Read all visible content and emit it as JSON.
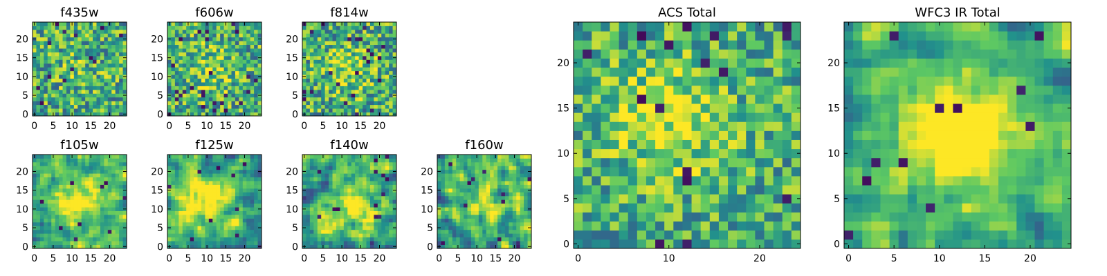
{
  "figure": {
    "colormap": [
      "#440154",
      "#3b528b",
      "#21918c",
      "#5ec962",
      "#fde725"
    ],
    "grid_size": 25
  },
  "chart_data": [
    {
      "type": "heatmap",
      "title": "f435w",
      "xticks": [
        "0",
        "5",
        "10",
        "15",
        "20"
      ],
      "yticks": [
        "0",
        "5",
        "10",
        "15",
        "20"
      ],
      "xlim": [
        -0.5,
        24.5
      ],
      "ylim": [
        -0.5,
        24.5
      ],
      "seed": 11,
      "peak": [
        12,
        12
      ],
      "peak_strength": 0.08,
      "smooth": 0,
      "noise": 0.42,
      "dark_fraction": 0.03
    },
    {
      "type": "heatmap",
      "title": "f606w",
      "xticks": [
        "0",
        "5",
        "10",
        "15",
        "20"
      ],
      "yticks": [
        "0",
        "5",
        "10",
        "15",
        "20"
      ],
      "xlim": [
        -0.5,
        24.5
      ],
      "ylim": [
        -0.5,
        24.5
      ],
      "seed": 23,
      "peak": [
        11,
        12
      ],
      "peak_strength": 0.2,
      "smooth": 0,
      "noise": 0.42,
      "dark_fraction": 0.035
    },
    {
      "type": "heatmap",
      "title": "f814w",
      "xticks": [
        "0",
        "5",
        "10",
        "15",
        "20"
      ],
      "yticks": [
        "0",
        "5",
        "10",
        "15",
        "20"
      ],
      "xlim": [
        -0.5,
        24.5
      ],
      "ylim": [
        -0.5,
        24.5
      ],
      "seed": 37,
      "peak": [
        12,
        12
      ],
      "peak_strength": 0.22,
      "smooth": 0,
      "noise": 0.42,
      "dark_fraction": 0.04
    },
    {
      "type": "heatmap",
      "title": "f105w",
      "xticks": [
        "0",
        "5",
        "10",
        "15",
        "20"
      ],
      "yticks": [
        "0",
        "5",
        "10",
        "15",
        "20"
      ],
      "xlim": [
        -0.5,
        24.5
      ],
      "ylim": [
        -0.5,
        24.5
      ],
      "seed": 41,
      "peak": [
        12,
        12
      ],
      "peak_strength": 0.45,
      "smooth": 1,
      "noise": 0.32,
      "dark_fraction": 0.01
    },
    {
      "type": "heatmap",
      "title": "f125w",
      "xticks": [
        "0",
        "5",
        "10",
        "15",
        "20"
      ],
      "yticks": [
        "0",
        "5",
        "10",
        "15",
        "20"
      ],
      "xlim": [
        -0.5,
        24.5
      ],
      "ylim": [
        -0.5,
        24.5
      ],
      "seed": 53,
      "peak": [
        10,
        13
      ],
      "peak_strength": 0.45,
      "smooth": 1,
      "noise": 0.32,
      "dark_fraction": 0.015
    },
    {
      "type": "heatmap",
      "title": "f140w",
      "xticks": [
        "0",
        "5",
        "10",
        "15",
        "20"
      ],
      "yticks": [
        "0",
        "5",
        "10",
        "15",
        "20"
      ],
      "xlim": [
        -0.5,
        24.5
      ],
      "ylim": [
        -0.5,
        24.5
      ],
      "seed": 67,
      "peak": [
        13,
        11
      ],
      "peak_strength": 0.35,
      "smooth": 1,
      "noise": 0.38,
      "dark_fraction": 0.02
    },
    {
      "type": "heatmap",
      "title": "f160w",
      "xticks": [
        "0",
        "5",
        "10",
        "15",
        "20"
      ],
      "yticks": [
        "0",
        "5",
        "10",
        "15",
        "20"
      ],
      "xlim": [
        -0.5,
        24.5
      ],
      "ylim": [
        -0.5,
        24.5
      ],
      "seed": 79,
      "peak": [
        12,
        12
      ],
      "peak_strength": 0.3,
      "smooth": 1,
      "noise": 0.4,
      "dark_fraction": 0.025
    },
    {
      "type": "heatmap",
      "title": "ACS Total",
      "xticks": [
        "0",
        "10",
        "20"
      ],
      "yticks": [
        "0",
        "5",
        "10",
        "15",
        "20"
      ],
      "xlim": [
        -0.5,
        24.5
      ],
      "ylim": [
        -0.5,
        24.5
      ],
      "seed": 97,
      "peak": [
        10,
        14
      ],
      "peak_strength": 0.3,
      "smooth": 0,
      "noise": 0.36,
      "dark_fraction": 0.03
    },
    {
      "type": "heatmap",
      "title": "WFC3 IR Total",
      "xticks": [
        "0",
        "5",
        "10",
        "15",
        "20"
      ],
      "yticks": [
        "0",
        "5",
        "10",
        "15",
        "20"
      ],
      "xlim": [
        -0.5,
        24.5
      ],
      "ylim": [
        -0.5,
        24.5
      ],
      "seed": 113,
      "peak": [
        12,
        12
      ],
      "peak_strength": 0.55,
      "smooth": 1,
      "noise": 0.28,
      "dark_fraction": 0.02
    }
  ]
}
